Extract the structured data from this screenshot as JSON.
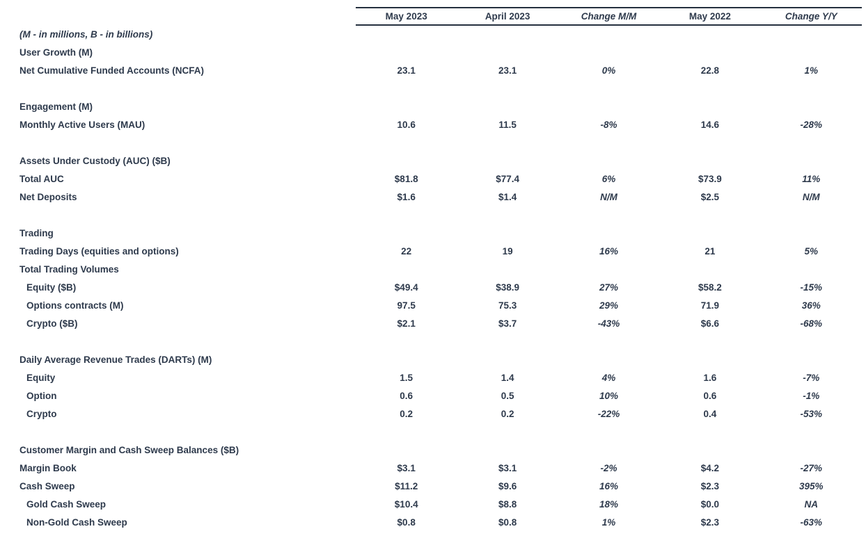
{
  "colors": {
    "text": "#2e3a4c",
    "rule": "#25303f",
    "background": "#ffffff"
  },
  "table": {
    "columns": [
      "May 2023",
      "April 2023",
      "Change M/M",
      "May 2022",
      "Change Y/Y"
    ],
    "col_keys": [
      "may-2023",
      "april-2023",
      "change-mm",
      "may-2022",
      "change-yy"
    ],
    "rows": [
      {
        "type": "note",
        "indent": 0,
        "label": "(M - in millions, B - in billions)",
        "values": null
      },
      {
        "type": "section",
        "indent": 0,
        "label": "User Growth (M)",
        "values": null
      },
      {
        "type": "data",
        "indent": 0,
        "label": "Net Cumulative Funded Accounts (NCFA)",
        "values": [
          "23.1",
          "23.1",
          "0%",
          "22.8",
          "1%"
        ]
      },
      {
        "type": "spacer"
      },
      {
        "type": "section",
        "indent": 0,
        "label": "Engagement (M)",
        "values": null
      },
      {
        "type": "data",
        "indent": 0,
        "label": "Monthly Active Users (MAU)",
        "values": [
          "10.6",
          "11.5",
          "-8%",
          "14.6",
          "-28%"
        ]
      },
      {
        "type": "spacer"
      },
      {
        "type": "section",
        "indent": 0,
        "label": "Assets Under Custody (AUC) ($B)",
        "values": null
      },
      {
        "type": "data",
        "indent": 0,
        "label": "Total AUC",
        "values": [
          "$81.8",
          "$77.4",
          "6%",
          "$73.9",
          "11%"
        ]
      },
      {
        "type": "data",
        "indent": 0,
        "label": "Net Deposits",
        "values": [
          "$1.6",
          "$1.4",
          "N/M",
          "$2.5",
          "N/M"
        ]
      },
      {
        "type": "spacer"
      },
      {
        "type": "section",
        "indent": 0,
        "label": "Trading",
        "values": null
      },
      {
        "type": "data",
        "indent": 0,
        "label": "Trading Days (equities and options)",
        "values": [
          "22",
          "19",
          "16%",
          "21",
          "5%"
        ]
      },
      {
        "type": "section",
        "indent": 0,
        "label": "Total Trading Volumes",
        "values": null
      },
      {
        "type": "data",
        "indent": 1,
        "label": "Equity ($B)",
        "values": [
          "$49.4",
          "$38.9",
          "27%",
          "$58.2",
          "-15%"
        ]
      },
      {
        "type": "data",
        "indent": 1,
        "label": "Options contracts (M)",
        "values": [
          "97.5",
          "75.3",
          "29%",
          "71.9",
          "36%"
        ]
      },
      {
        "type": "data",
        "indent": 1,
        "label": "Crypto ($B)",
        "values": [
          "$2.1",
          "$3.7",
          "-43%",
          "$6.6",
          "-68%"
        ]
      },
      {
        "type": "spacer"
      },
      {
        "type": "section",
        "indent": 0,
        "label": "Daily Average Revenue Trades (DARTs) (M)",
        "values": null
      },
      {
        "type": "data",
        "indent": 1,
        "label": "Equity",
        "values": [
          "1.5",
          "1.4",
          "4%",
          "1.6",
          "-7%"
        ]
      },
      {
        "type": "data",
        "indent": 1,
        "label": "Option",
        "values": [
          "0.6",
          "0.5",
          "10%",
          "0.6",
          "-1%"
        ]
      },
      {
        "type": "data",
        "indent": 1,
        "label": "Crypto",
        "values": [
          "0.2",
          "0.2",
          "-22%",
          "0.4",
          "-53%"
        ]
      },
      {
        "type": "spacer"
      },
      {
        "type": "section",
        "indent": 0,
        "label": "Customer Margin and Cash Sweep Balances ($B)",
        "values": null
      },
      {
        "type": "data",
        "indent": 0,
        "label": "Margin Book",
        "values": [
          "$3.1",
          "$3.1",
          "-2%",
          "$4.2",
          "-27%"
        ]
      },
      {
        "type": "data",
        "indent": 0,
        "label": "Cash Sweep",
        "values": [
          "$11.2",
          "$9.6",
          "16%",
          "$2.3",
          "395%"
        ]
      },
      {
        "type": "data",
        "indent": 1,
        "label": "Gold Cash Sweep",
        "values": [
          "$10.4",
          "$8.8",
          "18%",
          "$0.0",
          "NA"
        ]
      },
      {
        "type": "data",
        "indent": 1,
        "label": "Non-Gold Cash Sweep",
        "values": [
          "$0.8",
          "$0.8",
          "1%",
          "$2.3",
          "-63%"
        ]
      }
    ]
  }
}
